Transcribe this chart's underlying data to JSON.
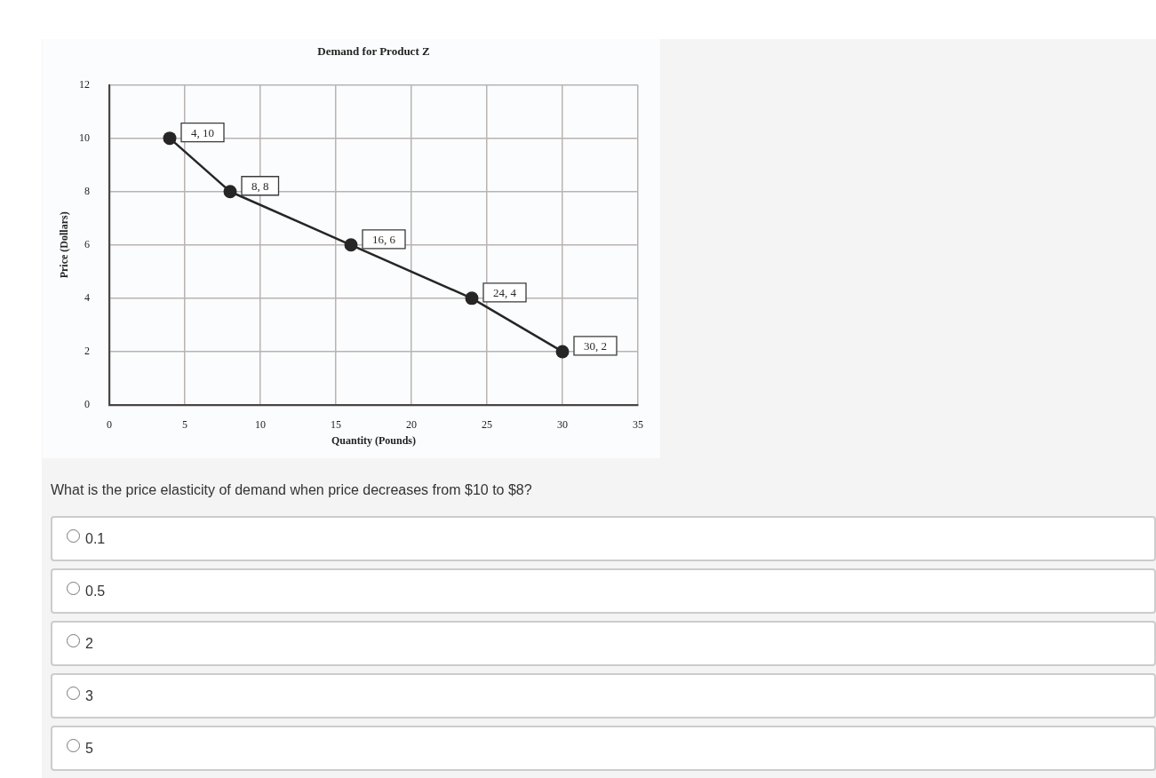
{
  "chart_data": {
    "type": "line",
    "title": "Demand for Product Z",
    "xlabel": "Quantity (Pounds)",
    "ylabel": "Price (Dollars)",
    "x": [
      4,
      8,
      16,
      24,
      30
    ],
    "series": [
      {
        "color": "#262626",
        "values": [
          10,
          8,
          6,
          4,
          2
        ],
        "value_labels": [
          "4, 10",
          "8, 8",
          "16, 6",
          "24, 4",
          "30, 2"
        ]
      }
    ],
    "xlim": [
      0,
      35
    ],
    "xticks": [
      0,
      5,
      10,
      15,
      20,
      25,
      30,
      35
    ],
    "ylim": [
      0,
      12
    ],
    "yticks": [
      0,
      2,
      4,
      6,
      8,
      10,
      12
    ],
    "grid": true,
    "marker": "circle",
    "line_style": "solid",
    "annotations": [
      "What is the price elasticity of demand when price decreases from $10 to $8?",
      "0.1",
      "0.5",
      "2",
      "3",
      "5"
    ]
  }
}
